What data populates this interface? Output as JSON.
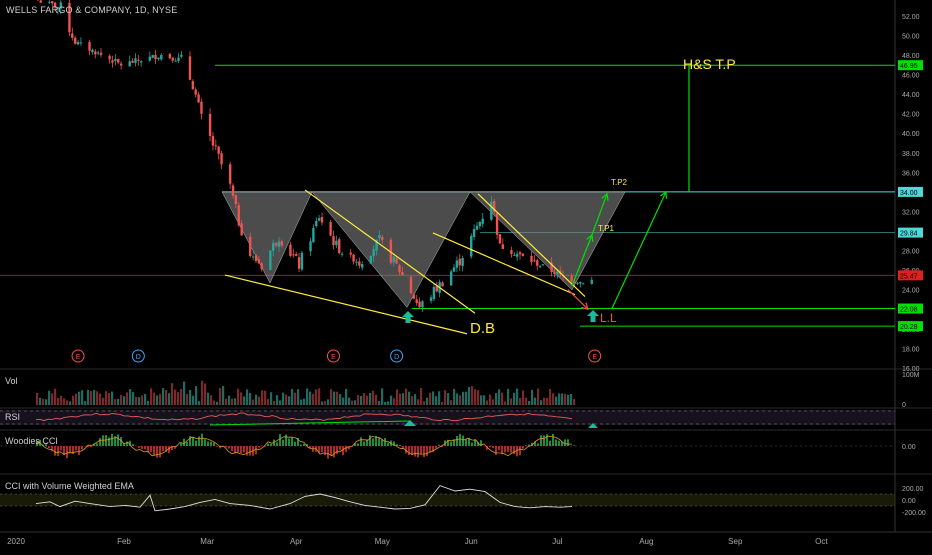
{
  "header": {
    "ticker_line": "WELLS FARGO & COMPANY, 1D, NYSE"
  },
  "colors": {
    "background": "#000000",
    "up": "#26a69a",
    "down": "#ef5350",
    "green": "#00e000",
    "yellow": "#ffeb3b",
    "cyan": "#4fd8d8",
    "red": "#e0201e"
  },
  "chart_data": [
    {
      "type": "candlestick",
      "title": "WELLS FARGO & COMPANY, 1D, NYSE",
      "x_axis_labels": [
        "2020",
        "Feb",
        "Mar",
        "Apr",
        "May",
        "Jun",
        "Jul",
        "Aug",
        "Sep",
        "Oct"
      ],
      "y_axis_ticks": [
        "52.00",
        "50.00",
        "48.00",
        "46.00",
        "44.00",
        "42.00",
        "40.00",
        "38.00",
        "36.00",
        "34.00",
        "32.00",
        "30.00",
        "28.00",
        "26.00",
        "24.00",
        "22.00",
        "20.00",
        "18.00",
        "16.00"
      ],
      "ylim": [
        16,
        53
      ],
      "price_tags": [
        {
          "label": "46.95",
          "value": 46.95,
          "color": "#00e000"
        },
        {
          "label": "34.00",
          "value": 34.0,
          "color": "#4fd8d8"
        },
        {
          "label": "29.84",
          "value": 29.84,
          "color": "#4fd8d8"
        },
        {
          "label": "25.47",
          "value": 25.47,
          "color": "#e0201e"
        },
        {
          "label": "22.08",
          "value": 22.08,
          "color": "#00e000"
        },
        {
          "label": "20.28",
          "value": 20.28,
          "color": "#00e000"
        }
      ],
      "annotations": [
        "H&S T.P",
        "T.P2",
        "T.P1",
        "D.B",
        "L.L"
      ],
      "earnings_markers": [
        "E",
        "D",
        "E",
        "D",
        "E"
      ],
      "series_close_approx": [
        {
          "date": "2020-01-02",
          "value": 53.6
        },
        {
          "date": "2020-01-10",
          "value": 52.8
        },
        {
          "date": "2020-01-15",
          "value": 49.3
        },
        {
          "date": "2020-01-22",
          "value": 48.3
        },
        {
          "date": "2020-01-31",
          "value": 47.0
        },
        {
          "date": "2020-02-07",
          "value": 47.5
        },
        {
          "date": "2020-02-14",
          "value": 48.0
        },
        {
          "date": "2020-02-21",
          "value": 47.5
        },
        {
          "date": "2020-02-25",
          "value": 45.0
        },
        {
          "date": "2020-02-28",
          "value": 41.5
        },
        {
          "date": "2020-03-05",
          "value": 37.5
        },
        {
          "date": "2020-03-09",
          "value": 34.5
        },
        {
          "date": "2020-03-12",
          "value": 31.0
        },
        {
          "date": "2020-03-16",
          "value": 27.5
        },
        {
          "date": "2020-03-20",
          "value": 26.5
        },
        {
          "date": "2020-03-26",
          "value": 29.5
        },
        {
          "date": "2020-04-02",
          "value": 26.5
        },
        {
          "date": "2020-04-09",
          "value": 31.5
        },
        {
          "date": "2020-04-16",
          "value": 28.0
        },
        {
          "date": "2020-04-23",
          "value": 26.8
        },
        {
          "date": "2020-04-30",
          "value": 29.0
        },
        {
          "date": "2020-05-07",
          "value": 26.0
        },
        {
          "date": "2020-05-14",
          "value": 22.2
        },
        {
          "date": "2020-05-21",
          "value": 24.5
        },
        {
          "date": "2020-05-28",
          "value": 27.0
        },
        {
          "date": "2020-06-04",
          "value": 31.0
        },
        {
          "date": "2020-06-08",
          "value": 33.3
        },
        {
          "date": "2020-06-11",
          "value": 28.5
        },
        {
          "date": "2020-06-18",
          "value": 27.5
        },
        {
          "date": "2020-06-25",
          "value": 26.5
        },
        {
          "date": "2020-07-02",
          "value": 25.5
        },
        {
          "date": "2020-07-09",
          "value": 24.8
        },
        {
          "date": "2020-07-14",
          "value": 25.0
        }
      ]
    },
    {
      "type": "bar",
      "title": "Vol",
      "y_axis_ticks": [
        "100M",
        "0"
      ]
    },
    {
      "type": "line",
      "title": "RSI",
      "y_axis_ticks": []
    },
    {
      "type": "line",
      "title": "Woodies CCI",
      "y_axis_ticks": [
        "0.00"
      ]
    },
    {
      "type": "line",
      "title": "CCI with Volume Weighted EMA",
      "y_axis_ticks": [
        "200.00",
        "0.00",
        "-200.00"
      ]
    }
  ]
}
